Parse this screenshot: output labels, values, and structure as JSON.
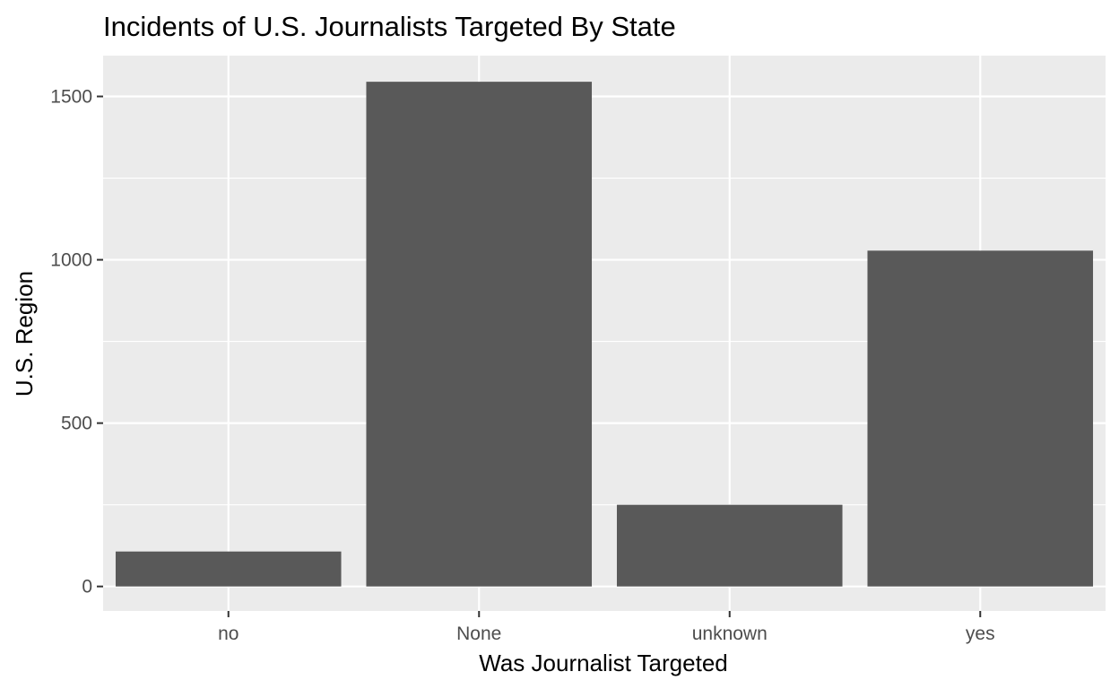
{
  "chart_data": {
    "type": "bar",
    "title": "Incidents of U.S. Journalists Targeted By State",
    "xlabel": "Was Journalist Targeted",
    "ylabel": "U.S. Region",
    "categories": [
      "no",
      "None",
      "unknown",
      "yes"
    ],
    "values": [
      107,
      1545,
      250,
      1028
    ],
    "ylim": [
      -75,
      1625
    ],
    "yticks": [
      0,
      500,
      1000,
      1500
    ],
    "ytick_labels": [
      "0",
      "500",
      "1000",
      "1500"
    ],
    "grid": true,
    "legend": "none"
  },
  "colors": {
    "panel_background": "#ebebeb",
    "grid_major": "#ffffff",
    "bar_fill": "#595959",
    "tick_text": "#4d4d4d",
    "tick_mark": "#333333"
  }
}
